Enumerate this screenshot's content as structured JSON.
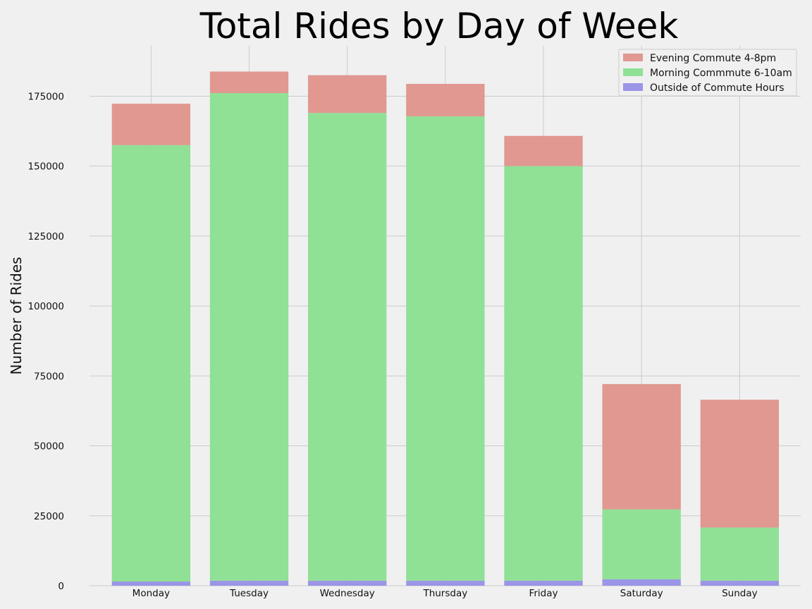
{
  "chart_data": {
    "type": "bar",
    "stacked": true,
    "title": "Total Rides by Day of Week",
    "xlabel": "",
    "ylabel": "Number of Rides",
    "categories": [
      "Monday",
      "Tuesday",
      "Wednesday",
      "Thursday",
      "Friday",
      "Saturday",
      "Sunday"
    ],
    "series": [
      {
        "name": "Outside of Commute Hours",
        "color": "#9a95e6",
        "values": [
          1500,
          1800,
          1800,
          1800,
          1800,
          2300,
          1800
        ]
      },
      {
        "name": "Morning Commmute 6-10am",
        "color": "#90e096",
        "values": [
          156000,
          174300,
          167200,
          166000,
          148200,
          25000,
          19000
        ]
      },
      {
        "name": "Evening Commute 4-8pm",
        "color": "#e09891",
        "values": [
          14800,
          7700,
          13500,
          11600,
          10800,
          44800,
          45700
        ]
      }
    ],
    "legend_order": [
      "Evening Commute 4-8pm",
      "Morning Commmute 6-10am",
      "Outside of Commute Hours"
    ],
    "yticks": [
      0,
      25000,
      50000,
      75000,
      100000,
      125000,
      150000,
      175000
    ],
    "ylim": [
      0,
      193000
    ],
    "grid": true,
    "legend_position": "top-right"
  }
}
